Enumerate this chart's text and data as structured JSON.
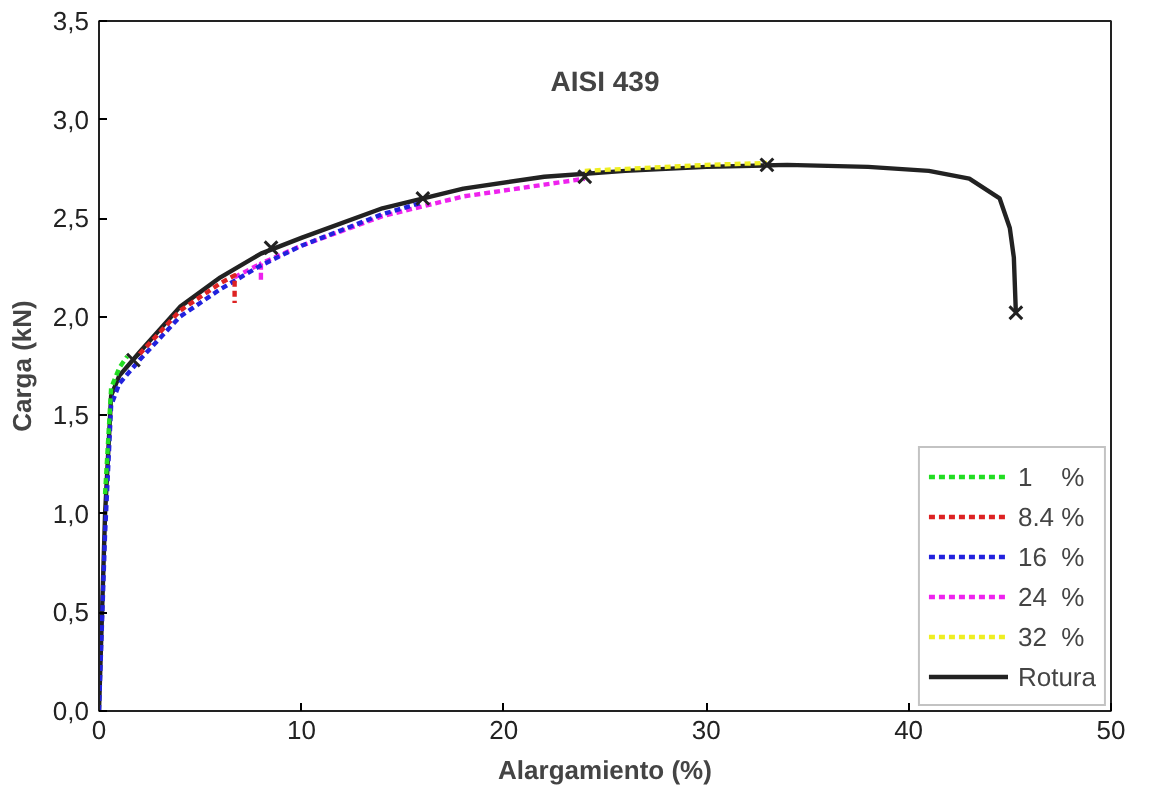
{
  "chart_data": {
    "type": "line",
    "title": "AISI 439",
    "xlabel": "Alargamiento (%)",
    "ylabel": "Carga (kN)",
    "xlim": [
      0,
      50
    ],
    "ylim": [
      0,
      3.5
    ],
    "xticks": [
      0,
      10,
      20,
      30,
      40,
      50
    ],
    "yticks": [
      {
        "value": 0,
        "label": "0,0"
      },
      {
        "value": 0.5,
        "label": "0,5"
      },
      {
        "value": 1,
        "label": "1,0"
      },
      {
        "value": 1.5,
        "label": "1,5"
      },
      {
        "value": 2,
        "label": "2,0"
      },
      {
        "value": 2.5,
        "label": "2,5"
      },
      {
        "value": 3,
        "label": "3,0"
      },
      {
        "value": 3.5,
        "label": "3,5"
      }
    ],
    "grid": false,
    "legend": "bottom right",
    "series": [
      {
        "name": "1    %",
        "color": "#22dd22",
        "line_style": "dashed",
        "x": [
          0.3,
          0.6,
          1,
          1.4
        ],
        "values": [
          1.1,
          1.64,
          1.74,
          1.8
        ]
      },
      {
        "name": "8.4 %",
        "color": "#dd2222",
        "line_style": "dashed",
        "x": [
          2,
          4,
          6,
          6.7,
          6.7
        ],
        "values": [
          1.81,
          2.03,
          2.17,
          2.21,
          2.07
        ]
      },
      {
        "name": "16  %",
        "color": "#2222dd",
        "line_style": "dashed",
        "x": [
          0,
          0.3,
          0.6,
          1,
          2,
          4,
          6,
          8,
          10,
          12,
          14,
          16
        ],
        "values": [
          0,
          0.9,
          1.55,
          1.66,
          1.78,
          2.0,
          2.14,
          2.26,
          2.36,
          2.44,
          2.52,
          2.58
        ]
      },
      {
        "name": "24  %",
        "color": "#ee22ee",
        "line_style": "dashed",
        "x": [
          6.7,
          8,
          8,
          8,
          10,
          14,
          18,
          22,
          24
        ],
        "values": [
          2.2,
          2.27,
          2.18,
          2.27,
          2.36,
          2.51,
          2.61,
          2.67,
          2.7
        ]
      },
      {
        "name": "32  %",
        "color": "#eeee22",
        "line_style": "dashed",
        "x": [
          24,
          26,
          30,
          33
        ],
        "values": [
          2.74,
          2.75,
          2.77,
          2.78
        ]
      },
      {
        "name": "Rotura",
        "color": "#222222",
        "line_style": "solid",
        "x": [
          0,
          0.3,
          0.6,
          1,
          2,
          4,
          6,
          8,
          10,
          14,
          18,
          22,
          26,
          30,
          34,
          38,
          41,
          43,
          44.5,
          45,
          45.2,
          45.3
        ],
        "values": [
          0,
          1.0,
          1.6,
          1.7,
          1.82,
          2.05,
          2.2,
          2.32,
          2.4,
          2.55,
          2.65,
          2.71,
          2.74,
          2.76,
          2.77,
          2.76,
          2.74,
          2.7,
          2.6,
          2.45,
          2.3,
          2.02
        ]
      },
      {
        "type": "scatter",
        "marker": "cross",
        "color": "#222222",
        "x": [
          1.7,
          8.5,
          16,
          24,
          33,
          45.3
        ],
        "values": [
          1.78,
          2.35,
          2.6,
          2.71,
          2.77,
          2.02
        ]
      }
    ]
  }
}
